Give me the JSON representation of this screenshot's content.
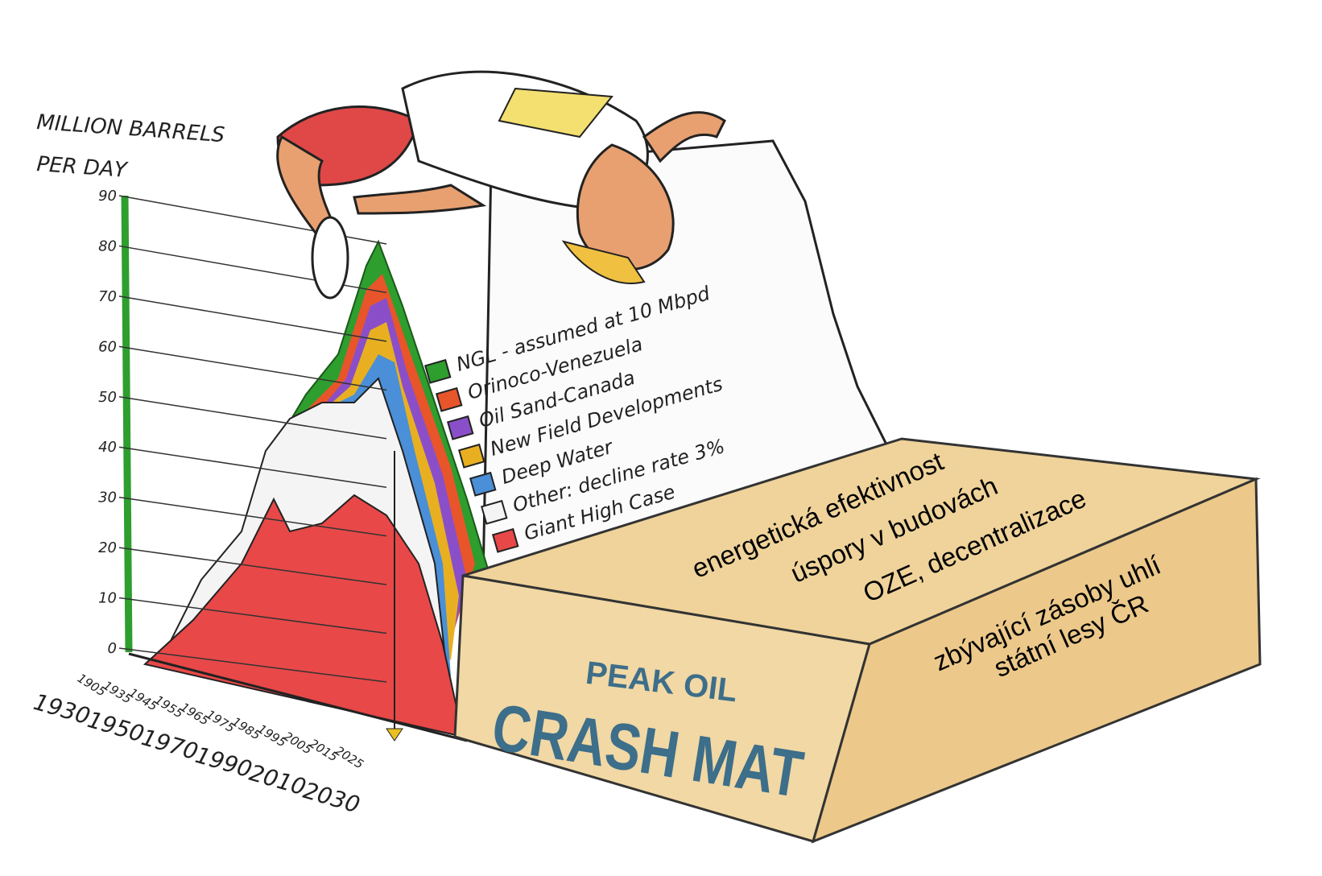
{
  "axis": {
    "title": [
      "MILLION BARRELS",
      "PER DAY"
    ],
    "yticks": [
      90,
      80,
      70,
      60,
      50,
      40,
      30,
      20,
      10,
      0
    ],
    "xticks_front": [
      "1930",
      "1950",
      "1970",
      "1990",
      "2010",
      "2030"
    ],
    "xticks_back": [
      "1905",
      "1935",
      "1945",
      "1955",
      "1965",
      "1975",
      "1985",
      "1995",
      "2005",
      "2015",
      "2025"
    ]
  },
  "legend": [
    {
      "label": "NGL - assumed at 10 Mbpd",
      "color": "#2e9e2e"
    },
    {
      "label": "Orinoco-Venezuela",
      "color": "#e8552a"
    },
    {
      "label": "Oil Sand-Canada",
      "color": "#8a4fc8"
    },
    {
      "label": "New Field Developments",
      "color": "#e8b020"
    },
    {
      "label": "Deep Water",
      "color": "#4a8fd8"
    },
    {
      "label": "Other: decline rate 3%",
      "color": "#f4f4f4"
    },
    {
      "label": "Giant High Case",
      "color": "#e84848"
    }
  ],
  "mat": {
    "top": "PEAK OIL",
    "bottom": "CRASH MAT"
  },
  "overlay": [
    "energetická efektivnost",
    "úspory v budovách",
    "OZE, decentralizace",
    "zbývající zásoby uhlí",
    "státní lesy ČR"
  ]
}
